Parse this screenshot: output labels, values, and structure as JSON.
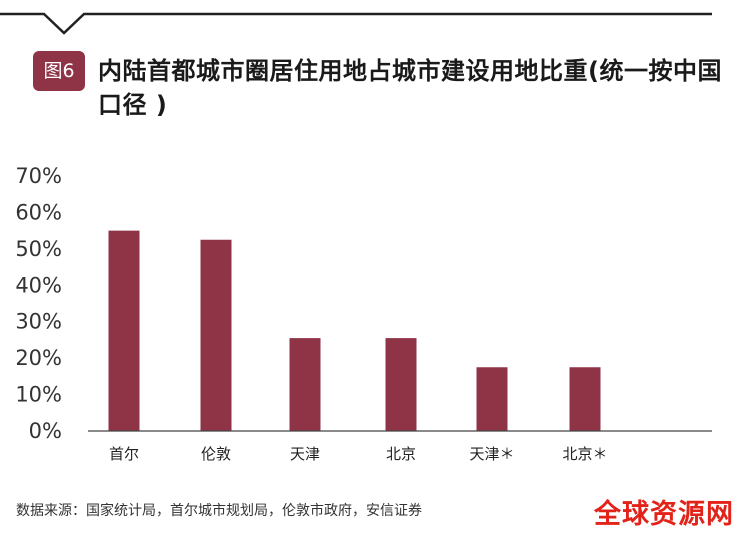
{
  "header": {
    "badge": "图6",
    "title": "内陆首都城市圈居住用地占城市建设用地比重(统一按中国口径 )"
  },
  "chart_data": {
    "type": "bar",
    "title": "内陆首都城市圈居住用地占城市建设用地比重(统一按中国口径 )",
    "categories": [
      "首尔",
      "伦敦",
      "天津",
      "北京",
      "天津＊",
      "北京＊"
    ],
    "values": [
      55,
      52.5,
      25.5,
      25.5,
      17.5,
      17.5
    ],
    "ylim": [
      0,
      70
    ],
    "yticks": [
      "0%",
      "10%",
      "20%",
      "30%",
      "40%",
      "50%",
      "60%",
      "70%"
    ],
    "xlabel": "",
    "ylabel": "",
    "grid": false,
    "bar_color": "#8f3347"
  },
  "footer": {
    "source": "数据来源：国家统计局，首尔城市规划局，伦敦市政府，安信证券",
    "watermark": "全球资源网"
  }
}
